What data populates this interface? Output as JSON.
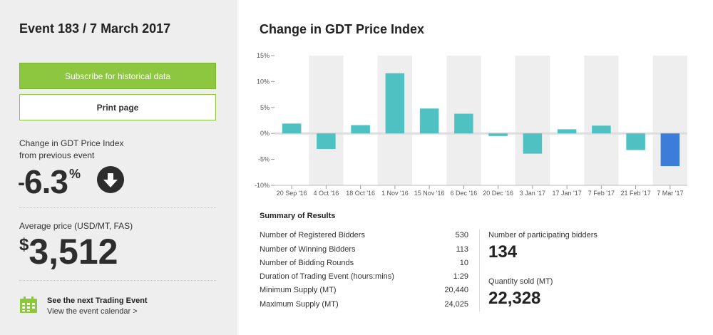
{
  "event": {
    "title": "Event 183 / 7 March 2017"
  },
  "buttons": {
    "subscribe": "Subscribe for historical data",
    "print": "Print page"
  },
  "change": {
    "label_line1": "Change in GDT Price Index",
    "label_line2": "from previous event",
    "sign": "-",
    "value": "6.3",
    "unit": "%",
    "direction_icon": "arrow-down-circle-icon"
  },
  "price": {
    "label": "Average price (USD/MT, FAS)",
    "currency": "$",
    "value": "3,512"
  },
  "next_event": {
    "title": "See the next Trading Event",
    "link": "View the event calendar >",
    "icon": "calendar-icon"
  },
  "chart": {
    "title": "Change in GDT Price Index"
  },
  "chart_data": {
    "type": "bar",
    "categories": [
      "20 Sep '16",
      "4 Oct '16",
      "18 Oct '16",
      "1 Nov '16",
      "15 Nov '16",
      "6 Dec '16",
      "20 Dec '16",
      "3 Jan '17",
      "17 Jan '17",
      "7 Feb '17",
      "21 Feb '17",
      "7 Mar '17"
    ],
    "values": [
      1.9,
      -3.0,
      1.6,
      11.6,
      4.8,
      3.8,
      -0.5,
      -3.9,
      0.8,
      1.5,
      -3.2,
      -6.3
    ],
    "ylim": [
      -10,
      15
    ],
    "yticks": [
      -10,
      -5,
      0,
      5,
      10,
      15
    ],
    "ytick_labels": [
      "-10%",
      "-5%",
      "0%",
      "5%",
      "10%",
      "15%"
    ],
    "colors": {
      "bar": "#4fc1c2",
      "highlight": "#3b7dd8",
      "band": "#eeeeee"
    },
    "highlight_index": 11
  },
  "summary": {
    "title": "Summary of Results",
    "rows": [
      {
        "label": "Number of Registered Bidders",
        "value": "530"
      },
      {
        "label": "Number of Winning Bidders",
        "value": "113"
      },
      {
        "label": "Number of Bidding Rounds",
        "value": "10"
      },
      {
        "label": "Duration of Trading Event (hours:mins)",
        "value": "1:29"
      },
      {
        "label": "Minimum Supply (MT)",
        "value": "20,440"
      },
      {
        "label": "Maximum Supply (MT)",
        "value": "24,025"
      }
    ],
    "participating_label": "Number of participating bidders",
    "participating_value": "134",
    "quantity_label": "Quantity sold (MT)",
    "quantity_value": "22,328"
  },
  "colors": {
    "accent": "#8dc63f",
    "text_dark": "#2d2d2d"
  }
}
